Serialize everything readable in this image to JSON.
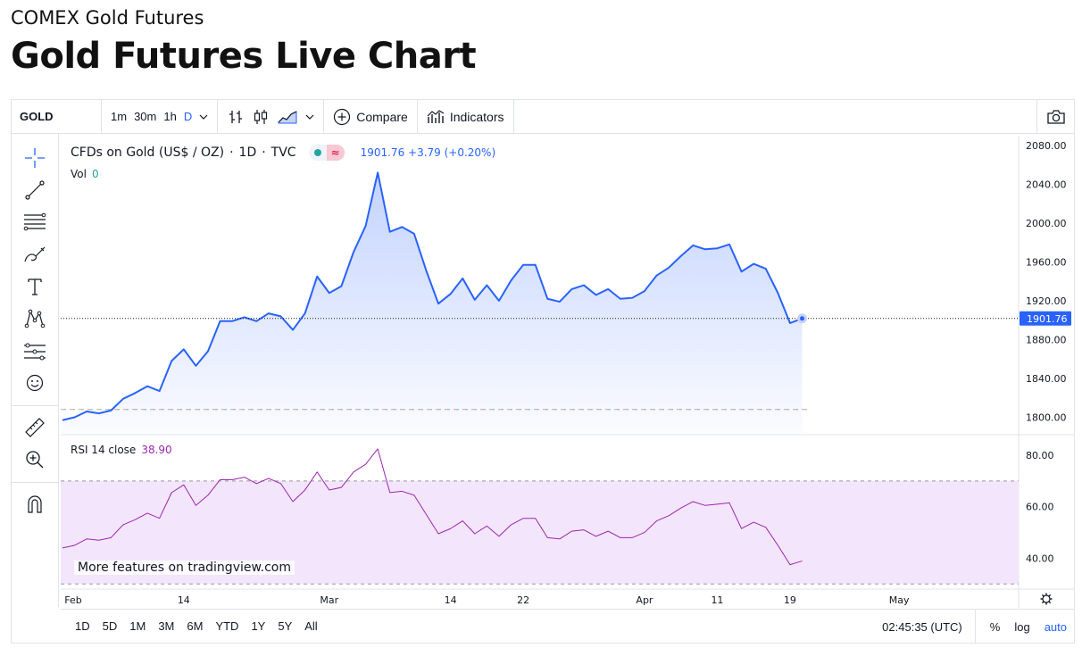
{
  "page": {
    "kicker": "COMEX Gold Futures",
    "title": "Gold Futures Live Chart"
  },
  "toolbar": {
    "symbol": "GOLD",
    "intervals": [
      "1m",
      "30m",
      "1h",
      "D"
    ],
    "active_interval": "D",
    "compare_label": "Compare",
    "indicators_label": "Indicators"
  },
  "legend": {
    "instrument": "CFDs on Gold (US$ / OZ)",
    "sep1": "·",
    "timeframe": "1D",
    "sep2": "·",
    "exchange": "TVC",
    "wave": "≈",
    "price_text": "1901.76 +3.79 (+0.20%)",
    "vol_label": "Vol",
    "vol_value": "0",
    "rsi_label": "RSI 14 close",
    "rsi_value": "38.90"
  },
  "watermark": "More features on tradingview.com",
  "bottom": {
    "ranges": [
      "1D",
      "5D",
      "1M",
      "3M",
      "6M",
      "YTD",
      "1Y",
      "5Y",
      "All"
    ],
    "time": "02:45:35 (UTC)",
    "percent": "%",
    "log": "log",
    "auto": "auto"
  },
  "colors": {
    "line": "#2962ff",
    "rsi": "#9c27b0",
    "rsi_band": "#f3e5fc",
    "accent": "#2962ff"
  },
  "chart_data": {
    "type": "area",
    "title": "CFDs on Gold (US$ / OZ) · 1D · TVC",
    "last_price": 1901.76,
    "last_price_label": "1901.76",
    "ylim": [
      1783,
      2090
    ],
    "yticks": [
      {
        "value": 1800,
        "label": "1800.00"
      },
      {
        "value": 1840,
        "label": "1840.00"
      },
      {
        "value": 1880,
        "label": "1880.00"
      },
      {
        "value": 1920,
        "label": "1920.00"
      },
      {
        "value": 1960,
        "label": "1960.00"
      },
      {
        "value": 2000,
        "label": "2000.00"
      },
      {
        "value": 2040,
        "label": "2040.00"
      },
      {
        "value": 2080,
        "label": "2080.00"
      }
    ],
    "xticks": [
      {
        "index": 0,
        "label": "Feb"
      },
      {
        "index": 10,
        "label": "14"
      },
      {
        "index": 22,
        "label": "Mar"
      },
      {
        "index": 32,
        "label": "14"
      },
      {
        "index": 38,
        "label": "22"
      },
      {
        "index": 48,
        "label": "Apr"
      },
      {
        "index": 54,
        "label": "11"
      },
      {
        "index": 60,
        "label": "19"
      },
      {
        "index": 69,
        "label": "May"
      }
    ],
    "x_slots": 79,
    "closes": [
      1797,
      1800,
      1806,
      1804,
      1807,
      1819,
      1825,
      1832,
      1827,
      1858,
      1870,
      1853,
      1868,
      1899,
      1899,
      1903,
      1899,
      1907,
      1904,
      1890,
      1907,
      1945,
      1928,
      1935,
      1970,
      1997,
      2052,
      1991,
      1996,
      1989,
      1951,
      1917,
      1927,
      1943,
      1921,
      1936,
      1920,
      1941,
      1957,
      1957,
      1922,
      1919,
      1932,
      1936,
      1926,
      1932,
      1922,
      1923,
      1930,
      1946,
      1954,
      1966,
      1977,
      1973,
      1974,
      1978,
      1950,
      1958,
      1953,
      1928,
      1897,
      1901.76
    ],
    "rsi": {
      "label": "RSI 14 close",
      "ylim": [
        28,
        88
      ],
      "yticks": [
        {
          "value": 40,
          "label": "40.00"
        },
        {
          "value": 60,
          "label": "60.00"
        },
        {
          "value": 80,
          "label": "80.00"
        }
      ],
      "upper": 70,
      "lower": 30,
      "values": [
        44,
        45,
        47.5,
        47,
        48,
        53,
        55,
        57.5,
        55.5,
        65.5,
        68.5,
        60.5,
        64.5,
        70.5,
        70.5,
        71.5,
        69,
        71,
        69,
        62,
        66.5,
        73.5,
        66.5,
        67.5,
        73.5,
        76.5,
        82.5,
        65.5,
        66,
        64.5,
        57,
        49.5,
        51.5,
        54.5,
        49.5,
        52.5,
        48.5,
        53,
        55.5,
        55.5,
        48,
        47.5,
        50.5,
        51,
        48.5,
        50.5,
        48,
        48,
        50,
        54.5,
        56.5,
        59.5,
        62,
        60.5,
        61,
        61.5,
        51.5,
        54,
        52,
        45,
        37.5,
        38.9
      ]
    }
  }
}
